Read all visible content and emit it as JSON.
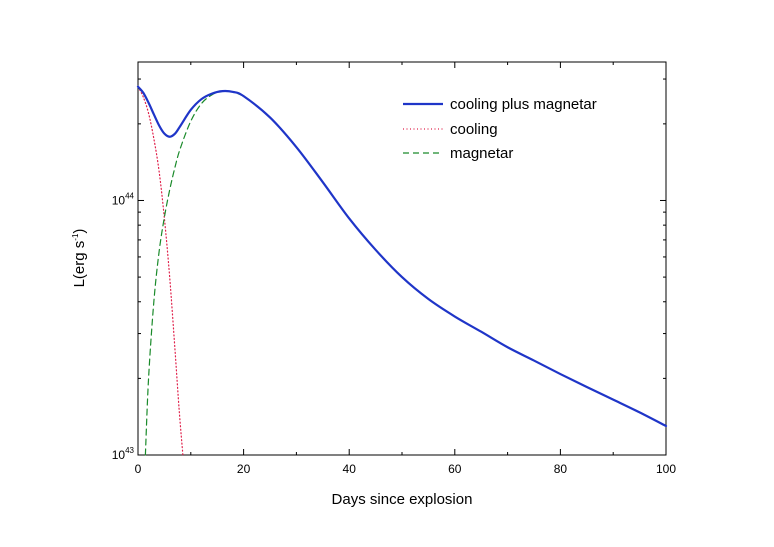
{
  "chart_data": {
    "type": "line",
    "title": "",
    "xlabel": "Days since explosion",
    "ylabel": "L(erg s",
    "ylabel_sup": "-1",
    "ylabel_close": ")",
    "xlim": [
      0,
      100
    ],
    "ylim": [
      1e+43,
      3.5e+44
    ],
    "yscale": "log",
    "x_ticks": [
      0,
      20,
      40,
      60,
      80,
      100
    ],
    "x_tick_labels": [
      "0",
      "20",
      "40",
      "60",
      "80",
      "100"
    ],
    "y_tick_labels": [
      {
        "value": 1e+43,
        "base": "10",
        "exp": "43"
      },
      {
        "value": 1e+44,
        "base": "10",
        "exp": "44"
      }
    ],
    "legend_position": "top-right",
    "series": [
      {
        "name": "cooling plus magnetar",
        "color": "#1f35c8",
        "style": "solid",
        "points": [
          [
            0,
            2.8e+44
          ],
          [
            1,
            2.65e+44
          ],
          [
            2,
            2.42e+44
          ],
          [
            3,
            2.18e+44
          ],
          [
            4,
            1.97e+44
          ],
          [
            5,
            1.83e+44
          ],
          [
            6,
            1.78e+44
          ],
          [
            7,
            1.83e+44
          ],
          [
            8,
            1.96e+44
          ],
          [
            10,
            2.27e+44
          ],
          [
            12,
            2.5e+44
          ],
          [
            14,
            2.63e+44
          ],
          [
            16,
            2.69e+44
          ],
          [
            18,
            2.67e+44
          ],
          [
            20,
            2.57e+44
          ],
          [
            25,
            2.12e+44
          ],
          [
            30,
            1.62e+44
          ],
          [
            35,
            1.18e+44
          ],
          [
            40,
            8.5e+43
          ],
          [
            45,
            6.4e+43
          ],
          [
            50,
            5e+43
          ],
          [
            55,
            4.1e+43
          ],
          [
            60,
            3.5e+43
          ],
          [
            65,
            3.05e+43
          ],
          [
            70,
            2.65e+43
          ],
          [
            75,
            2.35e+43
          ],
          [
            80,
            2.08e+43
          ],
          [
            85,
            1.85e+43
          ],
          [
            90,
            1.65e+43
          ],
          [
            95,
            1.47e+43
          ],
          [
            100,
            1.3e+43
          ]
        ]
      },
      {
        "name": "cooling",
        "color": "#e0204a",
        "style": "dotted",
        "points": [
          [
            0,
            2.8e+44
          ],
          [
            1,
            2.55e+44
          ],
          [
            2,
            2.2e+44
          ],
          [
            3,
            1.75e+44
          ],
          [
            4,
            1.3e+44
          ],
          [
            5,
            8.5e+43
          ],
          [
            6,
            5e+43
          ],
          [
            7,
            2.6e+43
          ],
          [
            7.8,
            1.5e+43
          ],
          [
            8.5,
            1e+43
          ]
        ]
      },
      {
        "name": "magnetar",
        "color": "#1a8a2a",
        "style": "dashed",
        "points": [
          [
            1.4,
            1e+43
          ],
          [
            2,
            2e+43
          ],
          [
            3,
            4e+43
          ],
          [
            4,
            6.3e+43
          ],
          [
            5,
            8.6e+43
          ],
          [
            6,
            1.1e+44
          ],
          [
            7,
            1.35e+44
          ],
          [
            8,
            1.6e+44
          ],
          [
            10,
            2.05e+44
          ],
          [
            12,
            2.4e+44
          ],
          [
            14,
            2.6e+44
          ],
          [
            16,
            2.69e+44
          ],
          [
            18,
            2.67e+44
          ],
          [
            20,
            2.57e+44
          ]
        ]
      }
    ]
  }
}
